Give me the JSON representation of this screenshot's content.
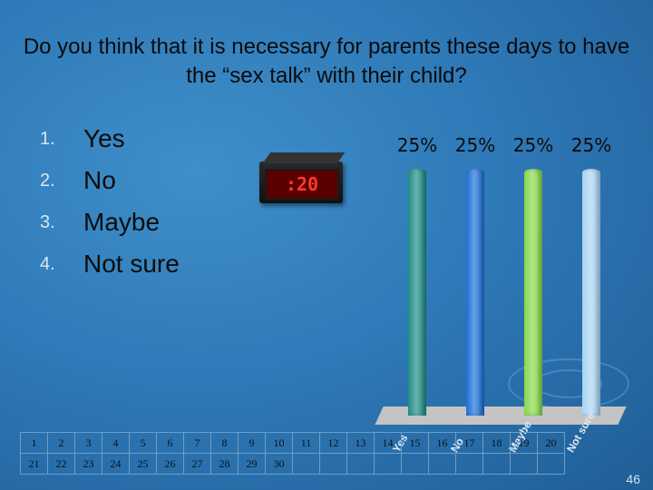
{
  "title": "Do you think that it is necessary for parents these days to have the “sex talk” with their child?",
  "options": [
    {
      "num": "1.",
      "text": "Yes"
    },
    {
      "num": "2.",
      "text": "No"
    },
    {
      "num": "3.",
      "text": "Maybe"
    },
    {
      "num": "4.",
      "text": "Not sure"
    }
  ],
  "timer": ":20",
  "chart_data": {
    "type": "bar",
    "categories": [
      "Yes",
      "No",
      "Maybe",
      "Not sure"
    ],
    "values": [
      25,
      25,
      25,
      25
    ],
    "value_labels": [
      "25%",
      "25%",
      "25%",
      "25%"
    ],
    "colors": [
      "#1e8c84",
      "#1c6fd6",
      "#86d94a",
      "#aad4f2"
    ],
    "ylim": [
      0,
      25
    ]
  },
  "grid": {
    "row1": [
      "1",
      "2",
      "3",
      "4",
      "5",
      "6",
      "7",
      "8",
      "9",
      "10",
      "11",
      "12",
      "13",
      "14",
      "15",
      "16",
      "17",
      "18",
      "19",
      "20"
    ],
    "row2": [
      "21",
      "22",
      "23",
      "24",
      "25",
      "26",
      "27",
      "28",
      "29",
      "30",
      "",
      "",
      "",
      "",
      "",
      "",
      "",
      "",
      "",
      ""
    ]
  },
  "slide_number": "46"
}
